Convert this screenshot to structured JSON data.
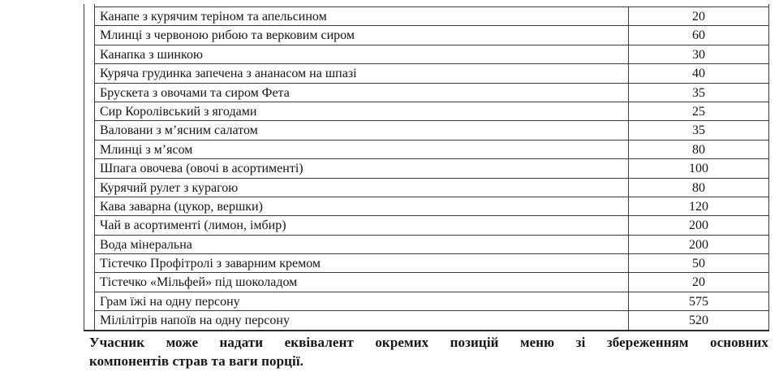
{
  "colors": {
    "border": "#3c3c3c",
    "text": "#141414"
  },
  "table": {
    "columns": [
      "item",
      "quantity"
    ],
    "rows": [
      {
        "item": "Канапе з курячим теріном та апельсином",
        "qty": "20"
      },
      {
        "item": "Млинці з червоною рибою та верковим сиром",
        "qty": "60"
      },
      {
        "item": "Канапка з шинкою",
        "qty": "30"
      },
      {
        "item": "Куряча грудинка запечена з ананасом на шпазі",
        "qty": "40"
      },
      {
        "item": "Брускета з овочами та сиром Фета",
        "qty": "35"
      },
      {
        "item": "Сир Королівський з ягодами",
        "qty": "25"
      },
      {
        "item": "Валовани з м’ясним салатом",
        "qty": "35"
      },
      {
        "item": "Млинці з м’ясом",
        "qty": "80"
      },
      {
        "item": "Шпага овочева (овочі в асортименті)",
        "qty": "100"
      },
      {
        "item": "Курячий рулет з курагою",
        "qty": "80"
      },
      {
        "item": "Кава заварна (цукор, вершки)",
        "qty": "120"
      },
      {
        "item": "Чай в асортименті (лимон, імбир)",
        "qty": "200"
      },
      {
        "item": "Вода мінеральна",
        "qty": "200"
      },
      {
        "item": "Тістечко Профітролі з заварним кремом",
        "qty": "50"
      },
      {
        "item": "Тістечко «Мільфей» під шоколадом",
        "qty": "20"
      },
      {
        "item": "Грам їжі на одну персону",
        "qty": "575"
      },
      {
        "item": "Мілілітрів напоїв на одну персону",
        "qty": "520"
      }
    ]
  },
  "note": {
    "line1": "Учасник може надати еквівалент окремих позицій меню зі збереженням основних",
    "line2": "компонентів страв та ваги порції."
  }
}
